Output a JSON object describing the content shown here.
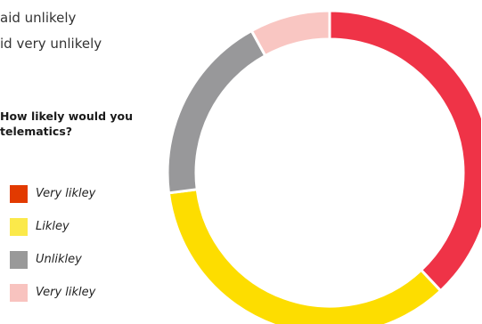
{
  "intro": {
    "line1": "",
    "line2": "aid unlikely",
    "line3": "id very unlikely"
  },
  "question": "How likely would you\ntelematics?",
  "legend": [
    {
      "label": "Very likley",
      "color": "#e23a00"
    },
    {
      "label": "Likley",
      "color": "#fbe94a"
    },
    {
      "label": "Unlikley",
      "color": "#999999"
    },
    {
      "label": "Very likley",
      "color": "#f8c3bf"
    }
  ],
  "chart_data": {
    "type": "pie",
    "donut": true,
    "categories": [
      "Very likley",
      "Likley",
      "Unlikley",
      "Very likley"
    ],
    "values": [
      38,
      35,
      19,
      8
    ],
    "colors": [
      "#ef3347",
      "#fddd00",
      "#98989a",
      "#f9c6c2"
    ],
    "title": "",
    "legend_position": "left"
  }
}
